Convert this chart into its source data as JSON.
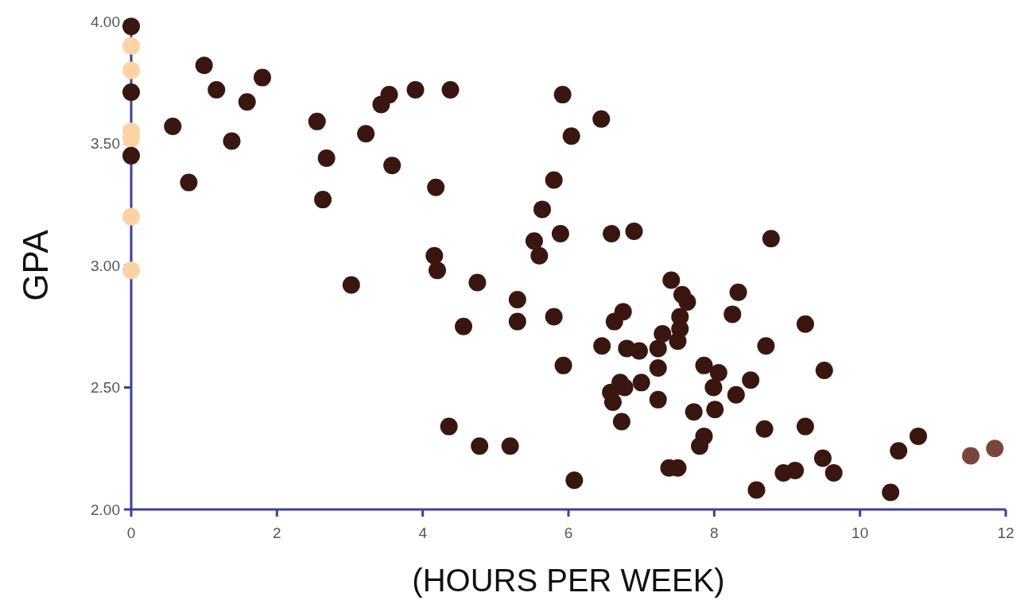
{
  "chart_data": {
    "type": "scatter",
    "ylabel": "GPA",
    "xlabel": "(HOURS PER WEEK)",
    "xlim": [
      0,
      12
    ],
    "ylim": [
      2,
      4
    ],
    "xticks": [
      0,
      2,
      4,
      6,
      8,
      10,
      12
    ],
    "yticks": [
      {
        "value": 2,
        "label": "2.00"
      },
      {
        "value": 2.5,
        "label": "2.50"
      },
      {
        "value": 3,
        "label": "3.00"
      },
      {
        "value": 3.5,
        "label": "3.50"
      },
      {
        "value": 4,
        "label": "4.00"
      }
    ],
    "grid": false,
    "marker": "circle",
    "series": [
      {
        "color": "#fdd3a6",
        "x": [
          0,
          0,
          0,
          0,
          0,
          0
        ],
        "values": [
          3.9,
          3.8,
          3.55,
          3.52,
          3.2,
          2.98
        ]
      },
      {
        "color": "#3a1610",
        "x": [
          0,
          0,
          0,
          0.57,
          0.79,
          1.0,
          1.17,
          1.38,
          1.59,
          1.8,
          2.55,
          2.68,
          2.63,
          3.02,
          3.22,
          3.43,
          3.54,
          3.58,
          3.9,
          4.18,
          4.16,
          4.2,
          4.38,
          4.36,
          4.56,
          4.75,
          4.78,
          5.2,
          5.3,
          5.3,
          5.53,
          5.6,
          5.64,
          5.8,
          5.8,
          5.89,
          5.92,
          5.93,
          6.04,
          6.08,
          6.45,
          6.46,
          6.63,
          6.75,
          6.8,
          6.97,
          6.58,
          6.71,
          6.77,
          6.61,
          7.0,
          6.73,
          7.23,
          7.29,
          7.23,
          7.23,
          7.41,
          7.56,
          7.63,
          7.53,
          7.53,
          7.5,
          7.86,
          8.06,
          7.99,
          8.3,
          8.5,
          8.33,
          8.25,
          7.72,
          8.01,
          8.71,
          9.25,
          9.51,
          8.69,
          9.25,
          7.86,
          7.8,
          7.38,
          7.5,
          8.58,
          8.95,
          9.11,
          9.49,
          9.64,
          10.42,
          10.53,
          10.8,
          6.59,
          6.9,
          8.78
        ],
        "values": [
          3.98,
          3.71,
          3.45,
          3.57,
          3.34,
          3.82,
          3.72,
          3.51,
          3.67,
          3.77,
          3.59,
          3.44,
          3.27,
          2.92,
          3.54,
          3.66,
          3.7,
          3.41,
          3.72,
          3.32,
          3.04,
          2.98,
          3.72,
          2.34,
          2.75,
          2.93,
          2.26,
          2.26,
          2.86,
          2.77,
          3.1,
          3.04,
          3.23,
          3.35,
          2.79,
          3.13,
          3.7,
          2.59,
          3.53,
          2.12,
          3.6,
          2.67,
          2.77,
          2.81,
          2.66,
          2.65,
          2.48,
          2.52,
          2.5,
          2.44,
          2.52,
          2.36,
          2.66,
          2.72,
          2.58,
          2.45,
          2.94,
          2.88,
          2.85,
          2.79,
          2.74,
          2.69,
          2.59,
          2.56,
          2.5,
          2.47,
          2.53,
          2.89,
          2.8,
          2.4,
          2.41,
          2.67,
          2.76,
          2.57,
          2.33,
          2.34,
          2.3,
          2.26,
          2.17,
          2.17,
          2.08,
          2.15,
          2.16,
          2.21,
          2.15,
          2.07,
          2.24,
          2.3,
          3.13,
          3.14,
          3.11
        ]
      },
      {
        "color": "#7a453a",
        "x": [
          11.52,
          11.85
        ],
        "values": [
          2.22,
          2.25
        ]
      }
    ]
  }
}
